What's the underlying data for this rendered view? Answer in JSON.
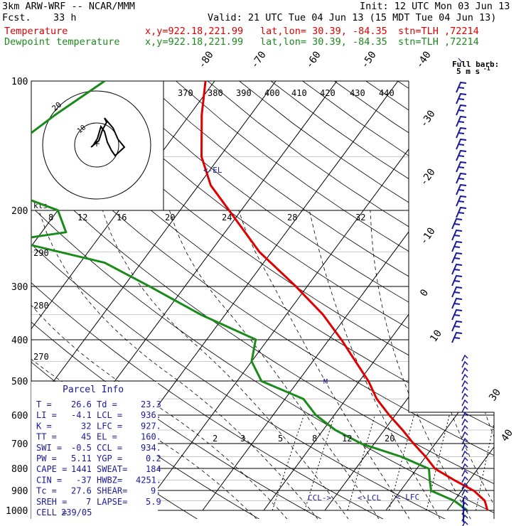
{
  "header": {
    "model": "3km ARW-WRF -- NCAR/MMM",
    "init": "Init: 12 UTC Mon 03 Jun 13",
    "fcst_label": "Fcst.",
    "fcst_value": "33 h",
    "valid": "Valid: 21 UTC Tue 04 Jun 13 (15 MDT Tue 04 Jun 13)",
    "lines": [
      {
        "name": "Temperature",
        "xy": "x,y=922.18,221.99",
        "latlon": "lat,lon= 30.39, -84.35",
        "stn": "stn=TLH ,72214",
        "color": "#e00000"
      },
      {
        "name": "Dewpoint temperature",
        "xy": "x,y=922.18,221.99",
        "latlon": "lat,lon= 30.39, -84.35",
        "stn": "stn=TLH ,72214",
        "color": "#1a8a1a"
      }
    ]
  },
  "chart_data": {
    "type": "line",
    "diagram": "skew-T log-p",
    "pressure_labels": [
      "100",
      "200",
      "300",
      "400",
      "500",
      "600",
      "700",
      "800",
      "900",
      "1000"
    ],
    "isotherm_labels_top": [
      "-80",
      "-70",
      "-60",
      "-50",
      "-40"
    ],
    "isotherm_labels_right": [
      "-30",
      "-20",
      "-10",
      "0",
      "10",
      "30",
      "40"
    ],
    "mixing_ratio_labels": [
      "2",
      "3",
      "5",
      "8",
      "12",
      "20"
    ],
    "series": [
      {
        "name": "Temperature",
        "color": "#e00000",
        "points": [
          [
            100,
            -71.5
          ],
          [
            120,
            -68
          ],
          [
            150,
            -63
          ],
          [
            175,
            -58
          ],
          [
            200,
            -52
          ],
          [
            250,
            -42
          ],
          [
            300,
            -32
          ],
          [
            350,
            -24
          ],
          [
            400,
            -18
          ],
          [
            450,
            -13
          ],
          [
            500,
            -8.5
          ],
          [
            550,
            -5
          ],
          [
            600,
            -1
          ],
          [
            650,
            3
          ],
          [
            700,
            6.5
          ],
          [
            750,
            10
          ],
          [
            800,
            13
          ],
          [
            850,
            17.5
          ],
          [
            900,
            22
          ],
          [
            950,
            25
          ],
          [
            1000,
            26.6
          ]
        ]
      },
      {
        "name": "Dewpoint temperature",
        "color": "#1a8a1a",
        "points": [
          [
            100,
            -88
          ],
          [
            120,
            -92
          ],
          [
            150,
            -96
          ],
          [
            170,
            -97
          ],
          [
            200,
            -80
          ],
          [
            225,
            -76
          ],
          [
            235,
            -84
          ],
          [
            265,
            -66
          ],
          [
            300,
            -56
          ],
          [
            350,
            -44
          ],
          [
            400,
            -32
          ],
          [
            450,
            -30
          ],
          [
            500,
            -26
          ],
          [
            550,
            -17
          ],
          [
            600,
            -13
          ],
          [
            650,
            -8
          ],
          [
            700,
            -2
          ],
          [
            750,
            6
          ],
          [
            800,
            12
          ],
          [
            850,
            13.5
          ],
          [
            900,
            15
          ],
          [
            950,
            20
          ],
          [
            1000,
            23.3
          ]
        ]
      }
    ],
    "markers": [
      {
        "label": "<-EL",
        "p": 160
      },
      {
        "label": "CCL->",
        "p": 934
      },
      {
        "label": "<-LCL",
        "p": 936
      },
      {
        "label": "<-LFC",
        "p": 927
      }
    ]
  },
  "hodograph": {
    "title": "kts",
    "ring_label": "20",
    "speed_labels": [
      "8",
      "12",
      "16",
      "20",
      "24",
      "28",
      "32"
    ],
    "theta_e_labels": [
      "370",
      "380",
      "390",
      "400",
      "410",
      "420",
      "430",
      "440"
    ],
    "theta_labels": [
      "290",
      "280",
      "270"
    ]
  },
  "barbs": {
    "title": "Full barb:",
    "unit": "5 m s",
    "unit_exp": "-1"
  },
  "parcel": {
    "title": "Parcel Info",
    "rows": [
      [
        "T  =",
        "26.6",
        "Td =",
        "23.3"
      ],
      [
        "LI =",
        "-4.1",
        "LCL =",
        "936."
      ],
      [
        "K  =",
        "32",
        "LFC =",
        "927."
      ],
      [
        "TT =",
        "45",
        "EL  =",
        "160."
      ],
      [
        "SWI =",
        "-0.5",
        "CCL =",
        "934."
      ],
      [
        "PW  =",
        "5.11",
        "YGP =",
        "0.2"
      ],
      [
        "CAPE =",
        "1441",
        "SWEAT=",
        "184"
      ],
      [
        "CIN  =",
        "-37",
        "HWBZ=",
        "4251."
      ],
      [
        "Tc   =",
        "27.6",
        "SHEAR=",
        "9."
      ],
      [
        "SREH =",
        "7",
        "LAPSE=",
        "5.9"
      ],
      [
        "CELL =",
        "239/05",
        "",
        ""
      ]
    ]
  }
}
